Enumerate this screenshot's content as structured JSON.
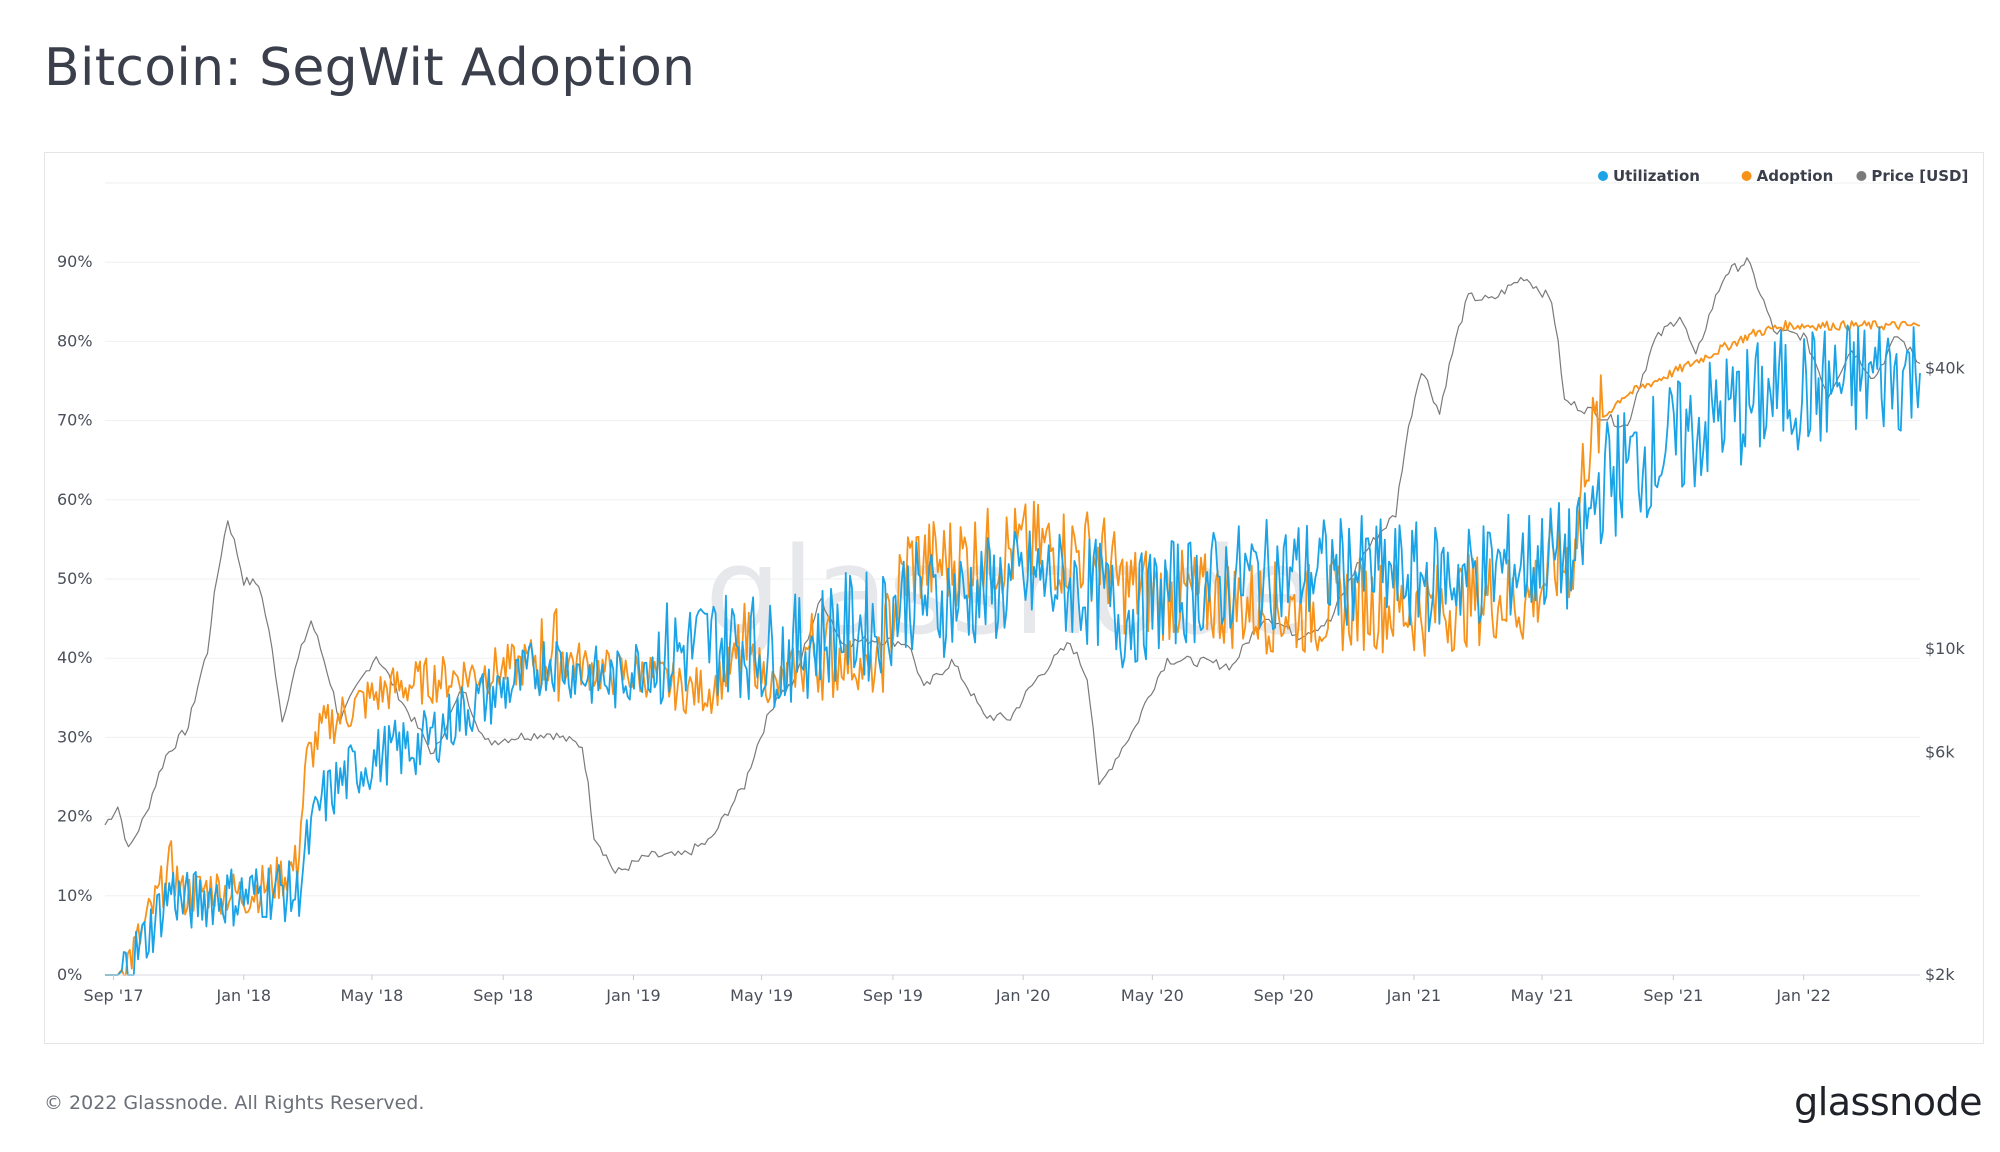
{
  "header": {
    "title": "Bitcoin: SegWit Adoption"
  },
  "footer": {
    "copyright": "© 2022 Glassnode. All Rights Reserved.",
    "brand": "glassnode"
  },
  "watermark": "glassnode",
  "chart_data": {
    "type": "line",
    "title": "Bitcoin: SegWit Adoption",
    "legend": {
      "position": "top-right",
      "items": [
        {
          "name": "Utilization",
          "color": "#1aa3e6"
        },
        {
          "name": "Adoption",
          "color": "#f7931a"
        },
        {
          "name": "Price [USD]",
          "color": "#7a7a7a"
        }
      ]
    },
    "grid": true,
    "x_axis": {
      "type": "date",
      "range": [
        "2017-08-24",
        "2022-04-20"
      ],
      "ticks": [
        {
          "date": "2017-09-01",
          "label": "Sep '17"
        },
        {
          "date": "2018-01-01",
          "label": "Jan '18"
        },
        {
          "date": "2018-05-01",
          "label": "May '18"
        },
        {
          "date": "2018-09-01",
          "label": "Sep '18"
        },
        {
          "date": "2019-01-01",
          "label": "Jan '19"
        },
        {
          "date": "2019-05-01",
          "label": "May '19"
        },
        {
          "date": "2019-09-01",
          "label": "Sep '19"
        },
        {
          "date": "2020-01-01",
          "label": "Jan '20"
        },
        {
          "date": "2020-05-01",
          "label": "May '20"
        },
        {
          "date": "2020-09-01",
          "label": "Sep '20"
        },
        {
          "date": "2021-01-01",
          "label": "Jan '21"
        },
        {
          "date": "2021-05-01",
          "label": "May '21"
        },
        {
          "date": "2021-09-01",
          "label": "Sep '21"
        },
        {
          "date": "2022-01-01",
          "label": "Jan '22"
        }
      ]
    },
    "y_left": {
      "unit": "percent",
      "range": [
        0,
        100
      ],
      "ticks": [
        0,
        10,
        20,
        30,
        40,
        50,
        60,
        70,
        80,
        90
      ],
      "tick_labels": [
        "0%",
        "10%",
        "20%",
        "30%",
        "40%",
        "50%",
        "60%",
        "70%",
        "80%",
        "90%"
      ]
    },
    "y_right": {
      "scale": "log",
      "unit": "USD",
      "range": [
        2000,
        100000
      ],
      "ticks": [
        {
          "value": 2000,
          "label": "$2k"
        },
        {
          "value": 6000,
          "label": "$6k"
        },
        {
          "value": 10000,
          "label": "$10k"
        },
        {
          "value": 40000,
          "label": "$40k"
        }
      ]
    },
    "series": [
      {
        "name": "Adoption",
        "axis": "left",
        "color": "#f7931a",
        "points": [
          [
            "2017-08-24",
            0
          ],
          [
            "2017-09-05",
            0
          ],
          [
            "2017-09-20",
            3
          ],
          [
            "2017-10-10",
            9
          ],
          [
            "2017-10-25",
            14
          ],
          [
            "2017-11-05",
            10
          ],
          [
            "2017-12-01",
            11
          ],
          [
            "2018-01-01",
            10
          ],
          [
            "2018-02-01",
            12
          ],
          [
            "2018-02-20",
            14
          ],
          [
            "2018-03-01",
            27
          ],
          [
            "2018-03-15",
            31
          ],
          [
            "2018-04-15",
            34
          ],
          [
            "2018-05-15",
            36
          ],
          [
            "2018-06-15",
            37
          ],
          [
            "2018-08-01",
            38
          ],
          [
            "2018-09-15",
            39
          ],
          [
            "2018-10-15",
            41
          ],
          [
            "2018-11-15",
            39
          ],
          [
            "2018-12-15",
            38
          ],
          [
            "2019-01-15",
            38
          ],
          [
            "2019-02-15",
            36
          ],
          [
            "2019-03-15",
            36
          ],
          [
            "2019-04-15",
            41
          ],
          [
            "2019-05-15",
            36
          ],
          [
            "2019-06-15",
            41
          ],
          [
            "2019-07-15",
            40
          ],
          [
            "2019-08-15",
            38
          ],
          [
            "2019-09-15",
            52
          ],
          [
            "2019-10-15",
            52
          ],
          [
            "2019-11-15",
            53
          ],
          [
            "2020-01-15",
            54
          ],
          [
            "2020-03-15",
            53
          ],
          [
            "2020-04-01",
            49
          ],
          [
            "2020-05-15",
            48
          ],
          [
            "2020-07-15",
            47
          ],
          [
            "2020-09-15",
            46
          ],
          [
            "2020-11-15",
            47
          ],
          [
            "2021-01-15",
            46
          ],
          [
            "2021-03-15",
            48
          ],
          [
            "2021-04-15",
            47
          ],
          [
            "2021-05-15",
            52
          ],
          [
            "2021-06-01",
            53
          ],
          [
            "2021-06-10",
            66
          ],
          [
            "2021-06-25",
            70
          ],
          [
            "2021-07-15",
            73
          ],
          [
            "2021-08-15",
            75
          ],
          [
            "2021-09-15",
            77
          ],
          [
            "2021-10-15",
            79
          ],
          [
            "2021-11-15",
            81
          ],
          [
            "2021-12-15",
            82
          ],
          [
            "2022-01-15",
            82
          ],
          [
            "2022-02-15",
            82
          ],
          [
            "2022-03-15",
            82
          ],
          [
            "2022-04-20",
            82
          ]
        ]
      },
      {
        "name": "Utilization",
        "axis": "left",
        "color": "#1aa3e6",
        "points": [
          [
            "2017-08-24",
            0
          ],
          [
            "2017-09-05",
            0
          ],
          [
            "2017-09-20",
            2
          ],
          [
            "2017-10-10",
            7
          ],
          [
            "2017-10-25",
            11
          ],
          [
            "2017-11-05",
            9
          ],
          [
            "2017-12-01",
            10
          ],
          [
            "2018-01-01",
            10
          ],
          [
            "2018-02-01",
            11
          ],
          [
            "2018-02-20",
            10
          ],
          [
            "2018-03-01",
            16
          ],
          [
            "2018-03-15",
            22
          ],
          [
            "2018-04-15",
            26
          ],
          [
            "2018-05-15",
            28
          ],
          [
            "2018-06-15",
            29
          ],
          [
            "2018-08-01",
            34
          ],
          [
            "2018-09-15",
            37
          ],
          [
            "2018-10-15",
            40
          ],
          [
            "2018-11-15",
            38
          ],
          [
            "2018-12-15",
            37
          ],
          [
            "2019-01-15",
            40
          ],
          [
            "2019-02-15",
            41
          ],
          [
            "2019-03-15",
            42
          ],
          [
            "2019-04-15",
            42
          ],
          [
            "2019-05-15",
            40
          ],
          [
            "2019-06-15",
            42
          ],
          [
            "2019-07-15",
            44
          ],
          [
            "2019-08-15",
            44
          ],
          [
            "2019-09-15",
            48
          ],
          [
            "2019-10-15",
            47
          ],
          [
            "2019-11-15",
            48
          ],
          [
            "2020-01-15",
            50
          ],
          [
            "2020-03-15",
            48
          ],
          [
            "2020-04-01",
            45
          ],
          [
            "2020-05-15",
            48
          ],
          [
            "2020-07-15",
            50
          ],
          [
            "2020-09-15",
            51
          ],
          [
            "2020-11-15",
            51
          ],
          [
            "2021-01-15",
            50
          ],
          [
            "2021-03-15",
            51
          ],
          [
            "2021-04-15",
            52
          ],
          [
            "2021-05-15",
            53
          ],
          [
            "2021-06-01",
            52
          ],
          [
            "2021-06-10",
            56
          ],
          [
            "2021-06-25",
            62
          ],
          [
            "2021-07-15",
            64
          ],
          [
            "2021-08-15",
            66
          ],
          [
            "2021-09-15",
            68
          ],
          [
            "2021-10-15",
            71
          ],
          [
            "2021-11-15",
            72
          ],
          [
            "2021-12-15",
            74
          ],
          [
            "2022-01-15",
            74
          ],
          [
            "2022-02-15",
            75
          ],
          [
            "2022-03-15",
            76
          ],
          [
            "2022-04-20",
            76
          ]
        ]
      },
      {
        "name": "Price [USD]",
        "axis": "right",
        "color": "#7a7a7a",
        "points": [
          [
            "2017-08-24",
            4200
          ],
          [
            "2017-09-05",
            4600
          ],
          [
            "2017-09-15",
            3700
          ],
          [
            "2017-10-01",
            4400
          ],
          [
            "2017-10-20",
            5900
          ],
          [
            "2017-11-10",
            6800
          ],
          [
            "2017-11-28",
            9900
          ],
          [
            "2017-12-17",
            19000
          ],
          [
            "2018-01-01",
            14000
          ],
          [
            "2018-01-15",
            13800
          ],
          [
            "2018-02-06",
            7000
          ],
          [
            "2018-03-05",
            11500
          ],
          [
            "2018-04-01",
            7000
          ],
          [
            "2018-05-05",
            9700
          ],
          [
            "2018-06-01",
            7500
          ],
          [
            "2018-06-28",
            5900
          ],
          [
            "2018-07-25",
            8200
          ],
          [
            "2018-08-15",
            6300
          ],
          [
            "2018-09-15",
            6500
          ],
          [
            "2018-10-15",
            6600
          ],
          [
            "2018-11-14",
            6200
          ],
          [
            "2018-11-25",
            4000
          ],
          [
            "2018-12-15",
            3300
          ],
          [
            "2019-01-15",
            3600
          ],
          [
            "2019-02-15",
            3600
          ],
          [
            "2019-03-15",
            3900
          ],
          [
            "2019-04-15",
            5100
          ],
          [
            "2019-05-15",
            7900
          ],
          [
            "2019-06-01",
            8500
          ],
          [
            "2019-06-26",
            12800
          ],
          [
            "2019-07-15",
            10300
          ],
          [
            "2019-08-15",
            10500
          ],
          [
            "2019-09-15",
            10300
          ],
          [
            "2019-09-30",
            8200
          ],
          [
            "2019-10-26",
            9400
          ],
          [
            "2019-11-25",
            7200
          ],
          [
            "2019-12-20",
            7100
          ],
          [
            "2020-01-15",
            8700
          ],
          [
            "2020-02-14",
            10300
          ],
          [
            "2020-03-01",
            8700
          ],
          [
            "2020-03-12",
            5000
          ],
          [
            "2020-04-15",
            6800
          ],
          [
            "2020-05-15",
            9500
          ],
          [
            "2020-06-15",
            9400
          ],
          [
            "2020-07-15",
            9200
          ],
          [
            "2020-08-15",
            11800
          ],
          [
            "2020-09-15",
            10700
          ],
          [
            "2020-10-15",
            11500
          ],
          [
            "2020-11-15",
            16000
          ],
          [
            "2020-12-15",
            19500
          ],
          [
            "2021-01-08",
            40000
          ],
          [
            "2021-01-25",
            32000
          ],
          [
            "2021-02-21",
            57000
          ],
          [
            "2021-03-15",
            56000
          ],
          [
            "2021-04-14",
            63000
          ],
          [
            "2021-05-10",
            56000
          ],
          [
            "2021-05-22",
            34000
          ],
          [
            "2021-06-22",
            32000
          ],
          [
            "2021-07-20",
            30000
          ],
          [
            "2021-08-15",
            46000
          ],
          [
            "2021-09-07",
            52000
          ],
          [
            "2021-09-22",
            42000
          ],
          [
            "2021-10-20",
            64000
          ],
          [
            "2021-11-09",
            68000
          ],
          [
            "2021-12-04",
            48000
          ],
          [
            "2022-01-01",
            47000
          ],
          [
            "2022-01-24",
            35000
          ],
          [
            "2022-02-15",
            44000
          ],
          [
            "2022-03-08",
            38000
          ],
          [
            "2022-03-30",
            47000
          ],
          [
            "2022-04-20",
            41000
          ]
        ]
      }
    ]
  }
}
